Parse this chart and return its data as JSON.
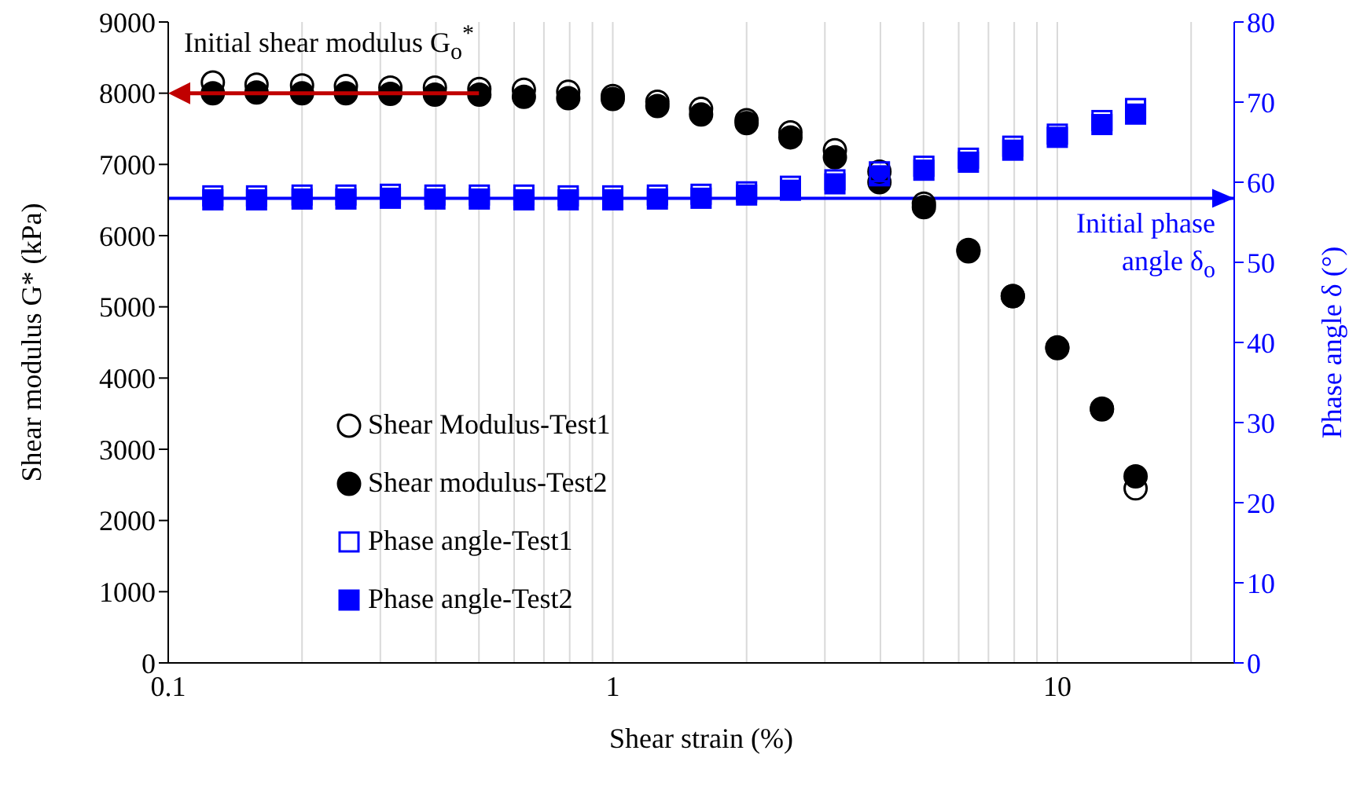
{
  "chart_data": {
    "type": "scatter",
    "xlabel": "Shear strain (%)",
    "ylabel": "Shear modulus G* (kPa)",
    "y2label": "Phase angle δ (°)",
    "log": "x",
    "grid": "x",
    "legend": "bottom left",
    "xlim": [
      0.1,
      25
    ],
    "xticks": [
      0.1,
      {
        "value": 0.2,
        "label": null
      },
      {
        "value": 0.3,
        "label": null
      },
      {
        "value": 0.4,
        "label": null
      },
      {
        "value": 0.5,
        "label": null
      },
      {
        "value": 0.6,
        "label": null
      },
      {
        "value": 0.7,
        "label": null
      },
      {
        "value": 0.8,
        "label": null
      },
      {
        "value": 0.9,
        "label": null
      },
      1,
      {
        "value": 2,
        "label": null
      },
      {
        "value": 3,
        "label": null
      },
      {
        "value": 4,
        "label": null
      },
      {
        "value": 5,
        "label": null
      },
      {
        "value": 6,
        "label": null
      },
      {
        "value": 7,
        "label": null
      },
      {
        "value": 8,
        "label": null
      },
      {
        "value": 9,
        "label": null
      },
      10,
      {
        "value": 20,
        "label": null
      }
    ],
    "ylim": [
      0,
      9000
    ],
    "yticks": [
      0,
      1000,
      2000,
      3000,
      4000,
      5000,
      6000,
      7000,
      8000,
      9000
    ],
    "y2lim": [
      0,
      80
    ],
    "y2ticks": [
      0,
      10,
      20,
      30,
      40,
      50,
      60,
      70,
      80
    ],
    "x": [
      0.126,
      0.158,
      0.2,
      0.251,
      0.316,
      0.398,
      0.501,
      0.631,
      0.794,
      1,
      1.26,
      1.58,
      2,
      2.51,
      3.16,
      3.98,
      5.01,
      6.31,
      7.94,
      10,
      12.6,
      15
    ],
    "series": [
      {
        "name": "Shear Modulus-Test1",
        "color": "#000000",
        "marker": "circle",
        "values": [
          8150,
          8120,
          8110,
          8100,
          8080,
          8080,
          8060,
          8050,
          8020,
          7960,
          7880,
          7780,
          7620,
          7450,
          7200,
          6900,
          6450,
          5800,
          5150,
          4430,
          3560,
          2450
        ]
      },
      {
        "name": "Shear modulus-Test2",
        "color": "#000000",
        "marker": "circle",
        "values": [
          8000,
          8010,
          8000,
          8000,
          7990,
          7980,
          7980,
          7950,
          7930,
          7920,
          7820,
          7700,
          7580,
          7380,
          7100,
          6750,
          6400,
          5780,
          5150,
          4420,
          3570,
          2620
        ]
      },
      {
        "name": "Phase angle-Test1",
        "color": "#0000ff",
        "marker": "square",
        "axis": "y2",
        "values": [
          58.3,
          58.3,
          58.4,
          58.4,
          58.5,
          58.4,
          58.4,
          58.4,
          58.3,
          58.3,
          58.4,
          58.5,
          58.8,
          59.5,
          60.3,
          61.3,
          62,
          63,
          64.5,
          66,
          67.7,
          69.2
        ]
      },
      {
        "name": "Phase angle-Test2",
        "color": "#0000ff",
        "marker": "square",
        "axis": "y2",
        "values": [
          57.8,
          57.8,
          57.9,
          57.9,
          58,
          57.9,
          57.9,
          57.8,
          57.8,
          57.8,
          57.9,
          58,
          58.4,
          59,
          59.8,
          60.8,
          61.5,
          62.5,
          64,
          65.6,
          67.2,
          68.5
        ]
      }
    ],
    "ref_lines": [
      {
        "axis": "y2",
        "value": 58,
        "label": "Initial phase angle δ$_{o}$",
        "color": "#0000ff"
      }
    ],
    "annotations": [
      {
        "text": "Initial shear modulus G$_{o}$$^{*}$",
        "x": 0.5,
        "y": 8000
      }
    ]
  }
}
